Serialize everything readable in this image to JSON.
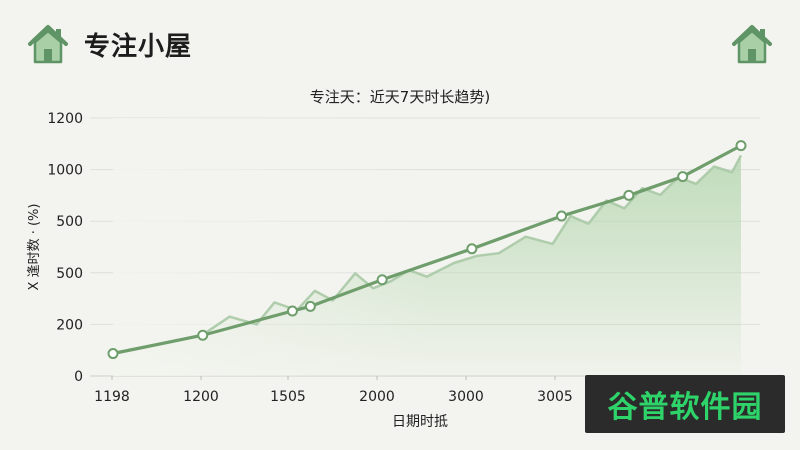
{
  "header": {
    "title": "专注小屋",
    "left_icon": "home-icon",
    "right_icon": "home-icon"
  },
  "colors": {
    "line": "#6f9e6c",
    "line_light": "#a9c9a5",
    "area_top": "#b7d7b1",
    "grid": "#dedfda",
    "icon": "#5f9466",
    "watermark_text": "#2ed46a"
  },
  "chart_data": {
    "type": "line",
    "title": "专注天：近天7天时长趋势)",
    "xlabel": "日期时抵",
    "ylabel": "X 逢时数 · (%)",
    "y_tick_labels": [
      "0",
      "200",
      "500",
      "500",
      "1000",
      "1200"
    ],
    "x_tick_labels": [
      "1198",
      "1200",
      "1505",
      "2000",
      "3000",
      "3005"
    ],
    "grid": true,
    "legend": "none",
    "trend": {
      "name": "",
      "x": [
        0,
        1,
        2,
        2.2,
        3,
        4,
        5,
        5.75,
        6.35,
        7
      ],
      "y": [
        87,
        158,
        252,
        270,
        373,
        493,
        620,
        700,
        773,
        893
      ]
    },
    "noisy": {
      "x": [
        0,
        0.5,
        1,
        1.3,
        1.6,
        1.8,
        2.05,
        2.25,
        2.45,
        2.7,
        2.9,
        3.1,
        3.3,
        3.5,
        3.8,
        4.05,
        4.3,
        4.6,
        4.9,
        5.1,
        5.3,
        5.5,
        5.7,
        5.9,
        6.1,
        6.3,
        6.5,
        6.7,
        6.9,
        7
      ],
      "y": [
        90,
        122,
        160,
        230,
        200,
        285,
        255,
        330,
        293,
        398,
        340,
        368,
        410,
        385,
        438,
        465,
        476,
        540,
        512,
        620,
        590,
        680,
        650,
        728,
        702,
        770,
        745,
        812,
        790,
        855
      ]
    },
    "markers": {
      "x": [
        0,
        1,
        2,
        2.2,
        3,
        4,
        5,
        5.75,
        6.35,
        7
      ],
      "y": [
        87,
        158,
        252,
        270,
        373,
        493,
        620,
        700,
        773,
        893
      ]
    }
  },
  "watermark": {
    "text": "谷普软件园"
  }
}
